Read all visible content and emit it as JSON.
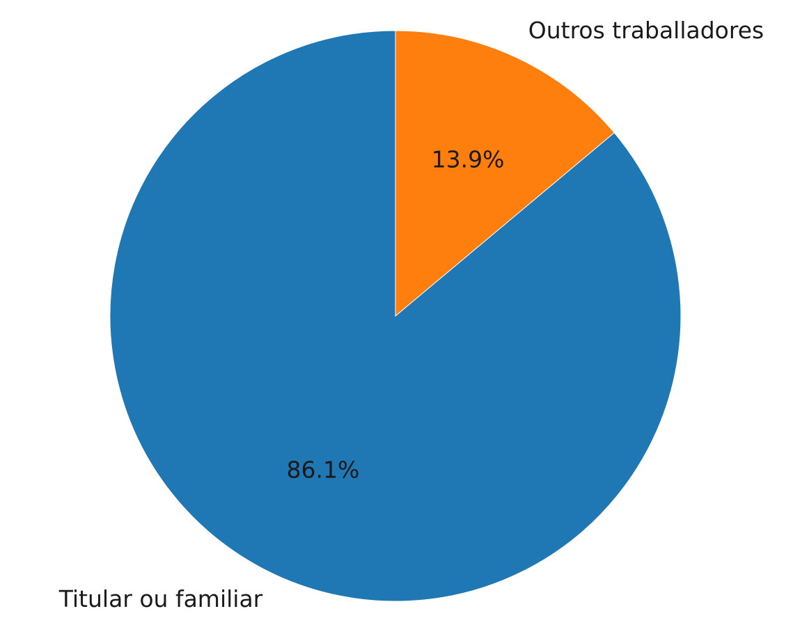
{
  "chart_data": {
    "type": "pie",
    "categories": [
      "Titular ou familiar",
      "Outros traballadores"
    ],
    "values": [
      86.1,
      13.9
    ],
    "value_labels": [
      "86.1%",
      "13.9%"
    ],
    "colors": [
      "#1f77b4",
      "#ff7f0e"
    ],
    "startangle": 90
  }
}
